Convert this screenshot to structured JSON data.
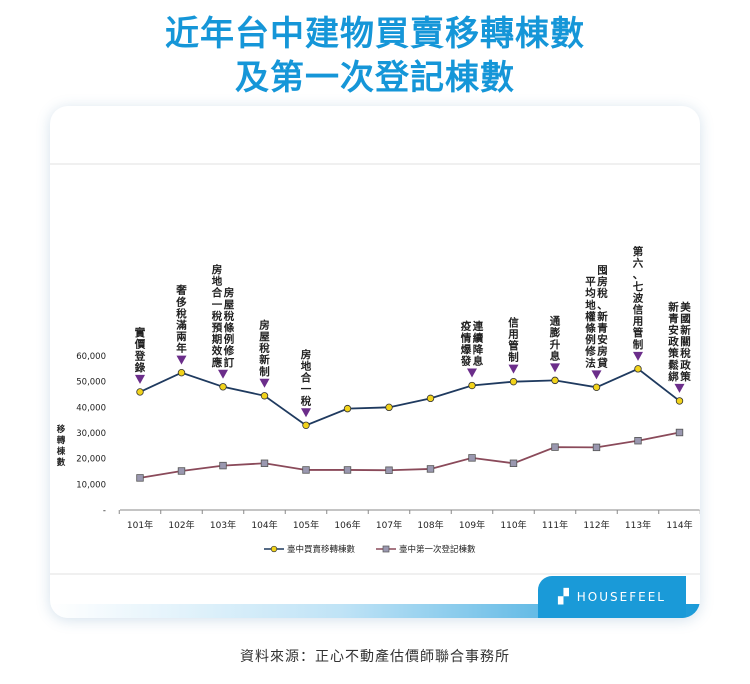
{
  "header": {
    "title_line1": "近年台中建物買賣移轉棟數",
    "title_line2": "及第一次登記棟數"
  },
  "chart_data": {
    "type": "line",
    "title": "近年台中建物買賣移轉棟數及第一次登記棟數",
    "ylabel": "移轉棟數",
    "categories": [
      "101年",
      "102年",
      "103年",
      "104年",
      "105年",
      "106年",
      "107年",
      "108年",
      "109年",
      "110年",
      "111年",
      "112年",
      "113年",
      "114年"
    ],
    "y_ticks": [
      "-",
      "10,000",
      "20,000",
      "30,000",
      "40,000",
      "50,000",
      "60,000"
    ],
    "ylim": [
      0,
      60000
    ],
    "grid": false,
    "legend_position": "bottom",
    "series": [
      {
        "name": "臺中買賣移轉棟數",
        "color": "#1f3a5f",
        "marker": "circle",
        "marker_color": "#f2d31b",
        "values": [
          46000,
          53500,
          48000,
          44500,
          33000,
          39500,
          40000,
          43500,
          48500,
          50000,
          50500,
          47800,
          55000,
          42500
        ]
      },
      {
        "name": "臺中第一次登記棟數",
        "color": "#8a4a5a",
        "marker": "square",
        "marker_color": "#9a98b0",
        "values": [
          12500,
          15200,
          17300,
          18200,
          15600,
          15600,
          15500,
          16000,
          20300,
          18200,
          24500,
          24400,
          27000,
          30200
        ]
      }
    ],
    "annotations": [
      {
        "category": "101年",
        "cols": [
          "實價登錄"
        ]
      },
      {
        "category": "102年",
        "cols": [
          "奢侈稅滿兩年"
        ]
      },
      {
        "category": "103年",
        "cols": [
          "房地合一稅預期效應",
          "房屋稅條例修訂"
        ]
      },
      {
        "category": "104年",
        "cols": [
          "房屋稅新制"
        ]
      },
      {
        "category": "105年",
        "cols": [
          "房地合一稅"
        ]
      },
      {
        "category": "109年",
        "cols": [
          "疫情爆發",
          "連續降息"
        ]
      },
      {
        "category": "110年",
        "cols": [
          "信用管制"
        ]
      },
      {
        "category": "111年",
        "cols": [
          "通膨升息"
        ]
      },
      {
        "category": "112年",
        "cols": [
          "平均地權條例修法",
          "囤房稅、新青安房貸"
        ]
      },
      {
        "category": "113年",
        "cols": [
          "第六、七波信用管制"
        ]
      },
      {
        "category": "114年",
        "cols": [
          "新青安政策鬆綁",
          "美國新關稅政策"
        ]
      }
    ],
    "arrow_color": "#6b2d8a"
  },
  "brand": {
    "name": "HOUSEFEEL",
    "icon": "house-logo-icon"
  },
  "source": "資料來源：正心不動產估價師聯合事務所"
}
